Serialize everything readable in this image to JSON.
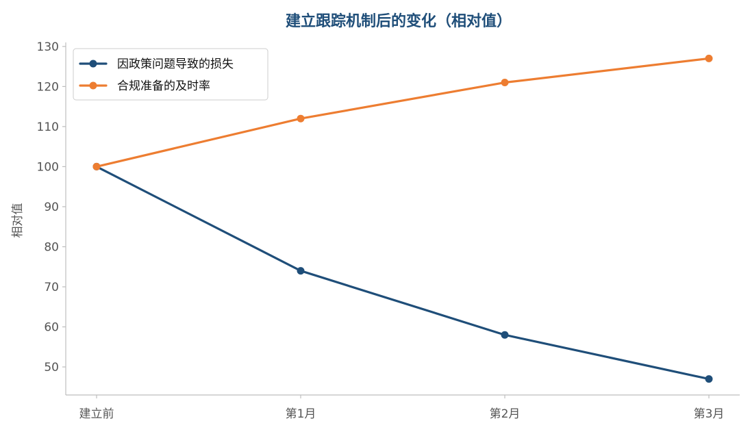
{
  "colors": {
    "title": "#1f4e79",
    "axis": "#bdbdbd",
    "tick_text": "#555555",
    "series_loss": "#1f4e79",
    "series_compliance": "#ed7d31"
  },
  "chart_data": {
    "type": "line",
    "title": "建立跟踪机制后的变化（相对值）",
    "xlabel": "",
    "ylabel": "相对值",
    "categories": [
      "建立前",
      "第1月",
      "第2月",
      "第3月"
    ],
    "ylim": [
      43,
      131
    ],
    "yticks": [
      50,
      60,
      70,
      80,
      90,
      100,
      110,
      120,
      130
    ],
    "grid": false,
    "legend_position": "top-left",
    "series": [
      {
        "name": "因政策问题导致的损失",
        "color": "#1f4e79",
        "values": [
          100,
          74,
          58,
          47
        ]
      },
      {
        "name": "合规准备的及时率",
        "color": "#ed7d31",
        "values": [
          100,
          112,
          121,
          127
        ]
      }
    ]
  }
}
